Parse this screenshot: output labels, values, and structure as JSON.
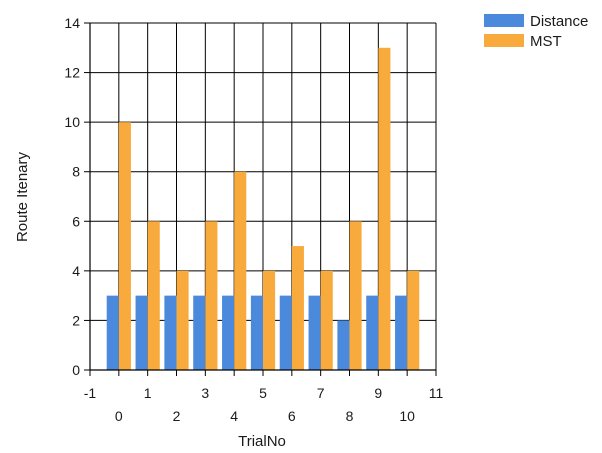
{
  "chart_data": {
    "type": "bar",
    "xlabel": "TrialNo",
    "ylabel": "Route Itenary",
    "xlim": [
      -1,
      11
    ],
    "ylim": [
      0,
      14
    ],
    "x_ticks": [
      -1,
      0,
      1,
      2,
      3,
      4,
      5,
      6,
      7,
      8,
      9,
      10,
      11
    ],
    "y_ticks": [
      0,
      2,
      4,
      6,
      8,
      10,
      12,
      14
    ],
    "grid": true,
    "legend_position": "top-right",
    "categories": [
      0,
      1,
      2,
      3,
      4,
      5,
      6,
      7,
      8,
      9,
      10
    ],
    "series": [
      {
        "name": "Distance",
        "color": "#4a89dc",
        "values": [
          3,
          3,
          3,
          3,
          3,
          3,
          3,
          3,
          2,
          3,
          3
        ]
      },
      {
        "name": "MST",
        "color": "#f9aa3d",
        "values": [
          10,
          6,
          4,
          6,
          8,
          4,
          5,
          4,
          6,
          13,
          4
        ]
      }
    ]
  }
}
